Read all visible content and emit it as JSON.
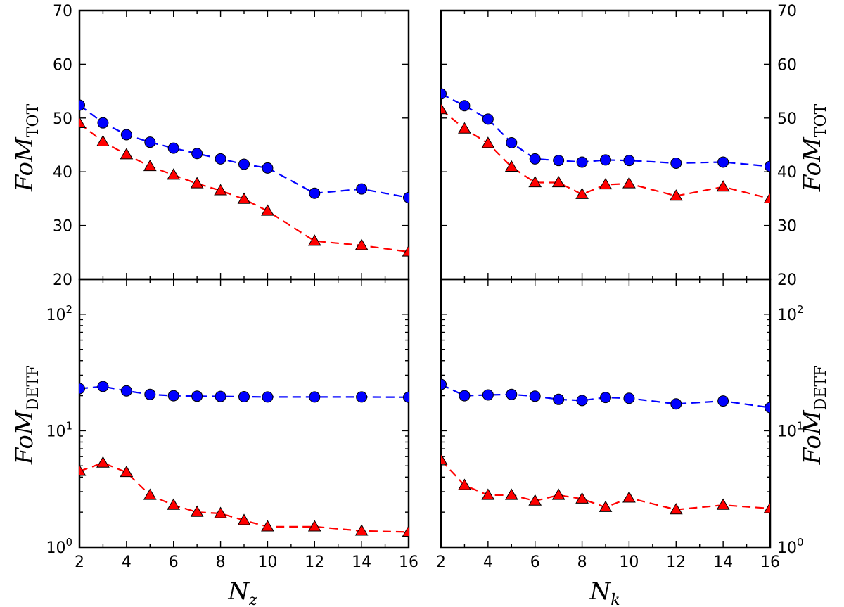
{
  "figure": {
    "x_label_left_main": "N",
    "x_label_left_sub": "z",
    "x_label_right_main": "N",
    "x_label_right_sub": "k",
    "y_label_top_main": "FoM",
    "y_label_top_sub": "TOT",
    "y_label_bottom_main": "FoM",
    "y_label_bottom_sub": "DETF"
  },
  "chart_data": [
    {
      "type": "line",
      "panel": "top-left",
      "xlabel": "",
      "ylabel": "FoM_TOT",
      "xlim": [
        2,
        16
      ],
      "ylim": [
        20,
        70
      ],
      "xticks": [
        2,
        4,
        6,
        8,
        10,
        12,
        14,
        16
      ],
      "yticks": [
        20,
        30,
        40,
        50,
        60,
        70
      ],
      "x": [
        2,
        3,
        4,
        5,
        6,
        7,
        8,
        9,
        10,
        12,
        14,
        16
      ],
      "series": [
        {
          "color": "#0000ff",
          "marker": "circle",
          "values": [
            52.4,
            49.1,
            46.9,
            45.5,
            44.4,
            43.4,
            42.4,
            41.4,
            40.7,
            36.0,
            36.8,
            35.2
          ]
        },
        {
          "color": "#ff0000",
          "marker": "triangle",
          "values": [
            49.0,
            45.6,
            43.2,
            41.0,
            39.4,
            37.8,
            36.5,
            34.9,
            32.7,
            27.1,
            26.3,
            25.1
          ]
        }
      ]
    },
    {
      "type": "line",
      "panel": "top-right",
      "xlabel": "",
      "ylabel": "FoM_TOT",
      "xlim": [
        2,
        16
      ],
      "ylim": [
        20,
        70
      ],
      "xticks": [
        2,
        4,
        6,
        8,
        10,
        12,
        14,
        16
      ],
      "yticks": [
        20,
        30,
        40,
        50,
        60,
        70
      ],
      "x": [
        2,
        3,
        4,
        5,
        6,
        7,
        8,
        9,
        10,
        12,
        14,
        16
      ],
      "series": [
        {
          "color": "#0000ff",
          "marker": "circle",
          "values": [
            54.5,
            52.3,
            49.8,
            45.4,
            42.4,
            42.1,
            41.8,
            42.2,
            42.1,
            41.6,
            41.8,
            41.0
          ]
        },
        {
          "color": "#ff0000",
          "marker": "triangle",
          "values": [
            51.6,
            48.0,
            45.3,
            40.9,
            38.0,
            38.0,
            35.8,
            37.6,
            37.8,
            35.5,
            37.2,
            35.0
          ]
        }
      ]
    },
    {
      "type": "line",
      "panel": "bottom-left",
      "xlabel": "N_z",
      "ylabel": "FoM_DETF",
      "yscale": "log",
      "xlim": [
        2,
        16
      ],
      "ylim": [
        1,
        200
      ],
      "xticks": [
        2,
        4,
        6,
        8,
        10,
        12,
        14,
        16
      ],
      "yticks": [
        1,
        10,
        100
      ],
      "x": [
        2,
        3,
        4,
        5,
        6,
        7,
        8,
        9,
        10,
        12,
        14,
        16
      ],
      "series": [
        {
          "color": "#0000ff",
          "marker": "circle",
          "values": [
            23.0,
            24.0,
            22.0,
            20.5,
            20.0,
            19.8,
            19.7,
            19.6,
            19.5,
            19.5,
            19.5,
            19.4
          ]
        },
        {
          "color": "#ff0000",
          "marker": "triangle",
          "values": [
            4.5,
            5.3,
            4.4,
            2.8,
            2.3,
            2.0,
            1.95,
            1.7,
            1.5,
            1.5,
            1.38,
            1.35
          ]
        }
      ]
    },
    {
      "type": "line",
      "panel": "bottom-right",
      "xlabel": "N_k",
      "ylabel": "FoM_DETF",
      "yscale": "log",
      "xlim": [
        2,
        16
      ],
      "ylim": [
        1,
        200
      ],
      "xticks": [
        2,
        4,
        6,
        8,
        10,
        12,
        14,
        16
      ],
      "yticks": [
        1,
        10,
        100
      ],
      "x": [
        2,
        3,
        4,
        5,
        6,
        7,
        8,
        9,
        10,
        12,
        14,
        16
      ],
      "series": [
        {
          "color": "#0000ff",
          "marker": "circle",
          "values": [
            25.0,
            20.0,
            20.3,
            20.5,
            19.8,
            18.6,
            18.2,
            19.3,
            19.0,
            17.0,
            18.0,
            15.8
          ]
        },
        {
          "color": "#ff0000",
          "marker": "triangle",
          "values": [
            5.6,
            3.4,
            2.8,
            2.8,
            2.5,
            2.8,
            2.6,
            2.2,
            2.65,
            2.1,
            2.3,
            2.15
          ]
        }
      ]
    }
  ]
}
